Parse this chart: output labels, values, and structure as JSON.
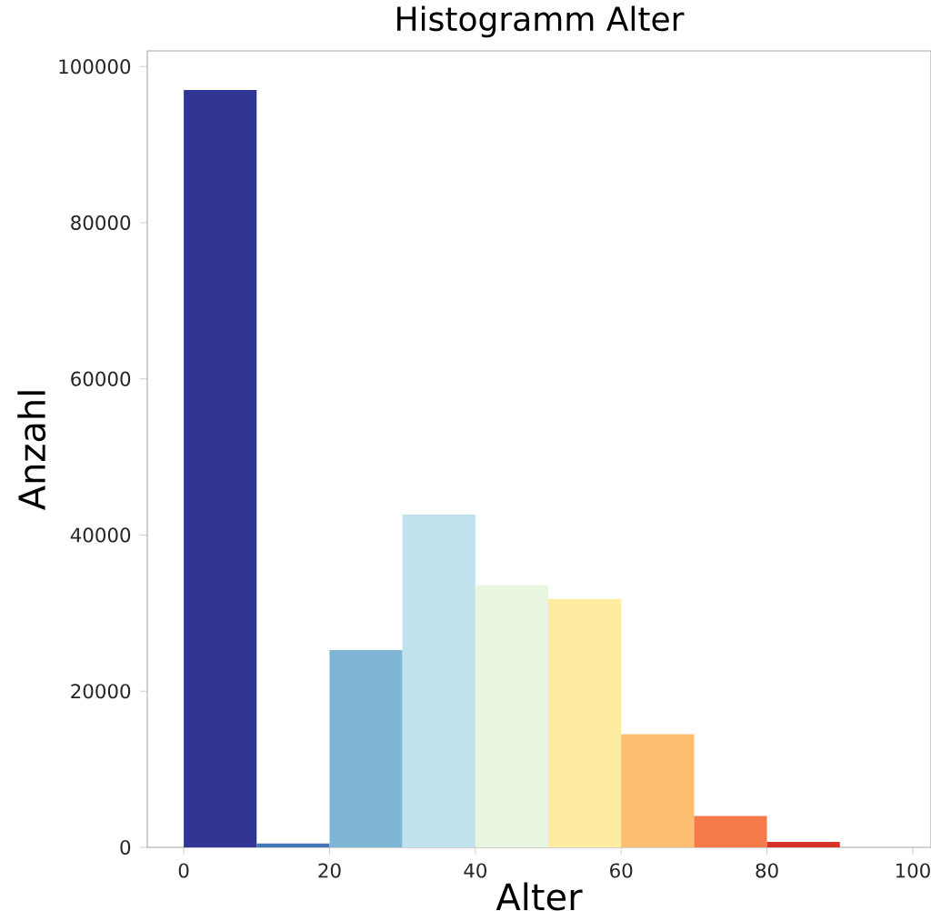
{
  "chart_data": {
    "type": "histogram",
    "title": "Histogramm Alter",
    "xlabel": "Alter",
    "ylabel": "Anzahl",
    "bins": [
      0,
      10,
      20,
      30,
      40,
      50,
      60,
      70,
      80,
      90
    ],
    "values": [
      97000,
      500,
      25300,
      42600,
      33600,
      31800,
      14500,
      4000,
      700
    ],
    "colors": [
      "#313695",
      "#4575b4",
      "#7fb6d6",
      "#bfe2ec",
      "#e9f6df",
      "#feeda0",
      "#fdbf6f",
      "#f67a49",
      "#d73027"
    ],
    "xlim": [
      -5,
      102.5
    ],
    "ylim": [
      0,
      102000
    ],
    "xticks": [
      0,
      20,
      40,
      60,
      80,
      100
    ],
    "yticks": [
      0,
      20000,
      40000,
      60000,
      80000,
      100000
    ]
  }
}
